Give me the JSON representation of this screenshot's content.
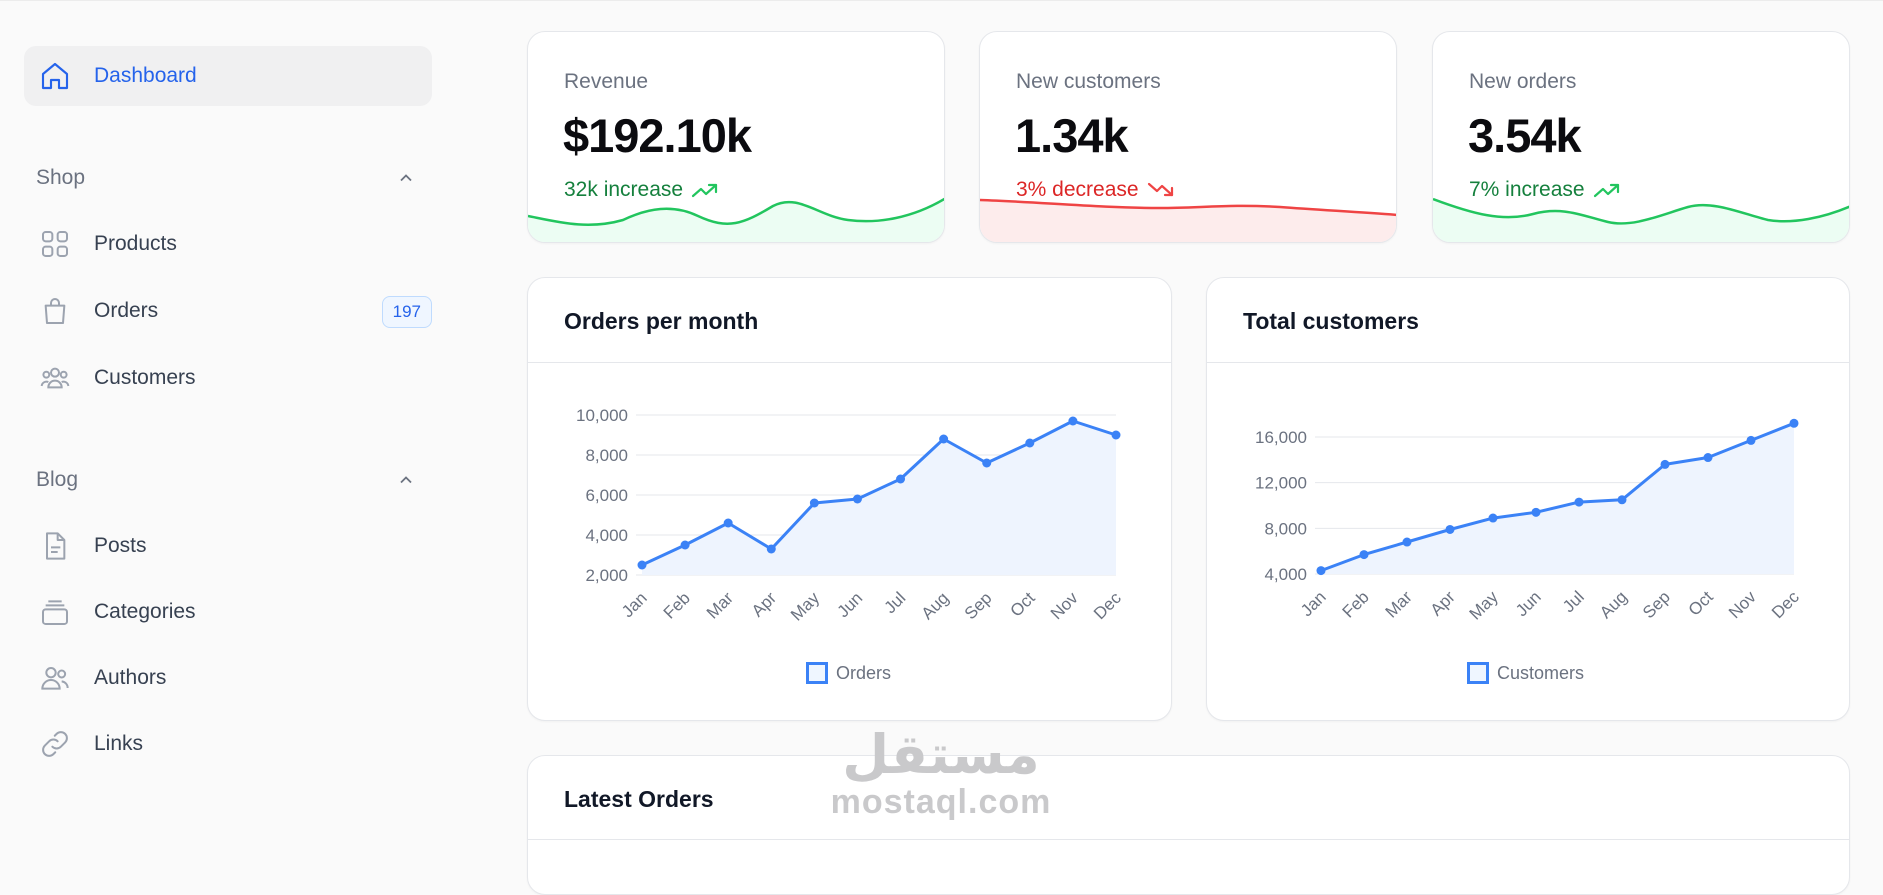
{
  "sidebar": {
    "dashboard": {
      "label": "Dashboard"
    },
    "shop": {
      "label": "Shop",
      "items": [
        {
          "label": "Products"
        },
        {
          "label": "Orders",
          "badge": "197"
        },
        {
          "label": "Customers"
        }
      ]
    },
    "blog": {
      "label": "Blog",
      "items": [
        {
          "label": "Posts"
        },
        {
          "label": "Categories"
        },
        {
          "label": "Authors"
        },
        {
          "label": "Links"
        }
      ]
    }
  },
  "stats": [
    {
      "title": "Revenue",
      "value": "$192.10k",
      "trend": "32k increase",
      "direction": "up",
      "color": "#15803d",
      "line_color": "#22c55e"
    },
    {
      "title": "New customers",
      "value": "1.34k",
      "trend": "3% decrease",
      "direction": "down",
      "color": "#dc2626",
      "line_color": "#ef4444"
    },
    {
      "title": "New orders",
      "value": "3.54k",
      "trend": "7% increase",
      "direction": "up",
      "color": "#15803d",
      "line_color": "#22c55e"
    }
  ],
  "charts": {
    "orders": {
      "title": "Orders per month",
      "legend": "Orders"
    },
    "customers": {
      "title": "Total customers",
      "legend": "Customers"
    }
  },
  "latest_orders": {
    "title": "Latest Orders"
  },
  "watermark": {
    "arabic": "مستقل",
    "latin": "mostaql.com"
  },
  "chart_data": [
    {
      "type": "line",
      "title": "Orders per month",
      "categories": [
        "Jan",
        "Feb",
        "Mar",
        "Apr",
        "May",
        "Jun",
        "Jul",
        "Aug",
        "Sep",
        "Oct",
        "Nov",
        "Dec"
      ],
      "series": [
        {
          "name": "Orders",
          "values": [
            2500,
            3500,
            4600,
            3300,
            5600,
            5800,
            6800,
            8800,
            7600,
            8600,
            9700,
            9000
          ],
          "color": "#3b82f6",
          "fill": "#eef4fe"
        }
      ],
      "yticks": [
        2000,
        4000,
        6000,
        8000,
        10000
      ],
      "ylim": [
        2000,
        10000
      ],
      "grid": true,
      "legend": "bottom"
    },
    {
      "type": "line",
      "title": "Total customers",
      "categories": [
        "Jan",
        "Feb",
        "Mar",
        "Apr",
        "May",
        "Jun",
        "Jul",
        "Aug",
        "Sep",
        "Oct",
        "Nov",
        "Dec"
      ],
      "series": [
        {
          "name": "Customers",
          "values": [
            4300,
            5700,
            6800,
            7900,
            8900,
            9400,
            10300,
            10500,
            13600,
            14200,
            15700,
            17200
          ],
          "color": "#3b82f6",
          "fill": "#eef4fe"
        }
      ],
      "yticks": [
        4000,
        8000,
        12000,
        16000
      ],
      "ylim": [
        4000,
        16000
      ],
      "grid": true,
      "legend": "bottom"
    }
  ]
}
